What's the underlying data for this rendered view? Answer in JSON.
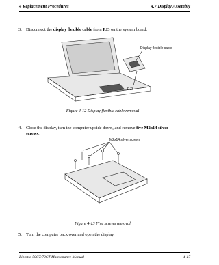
{
  "header": {
    "left": "4  Replacement Procedures",
    "right": "4.7  Display Assembly"
  },
  "steps": [
    {
      "number": "3.",
      "parts": [
        {
          "text": "Disconnect the "
        },
        {
          "text": "display flexible cable",
          "bold": true
        },
        {
          "text": " from "
        },
        {
          "text": "PJ3",
          "bold": true
        },
        {
          "text": " on the system board."
        }
      ]
    },
    {
      "number": "4.",
      "parts": [
        {
          "text": "Close the display, turn the computer upside down, and remove "
        },
        {
          "text": "five M2x14 silver screws",
          "bold": true
        },
        {
          "text": "."
        }
      ]
    },
    {
      "number": "5.",
      "parts": [
        {
          "text": "Turn the computer back over and open the display."
        }
      ]
    }
  ],
  "figures": [
    {
      "labels": [
        "Display flexible cable",
        "PJ3"
      ],
      "caption": "Figure 4-12  Display flexible cable removal"
    },
    {
      "labels": [
        "M2x14 silver screws"
      ],
      "caption": "Figure 4-13  Five screws removal"
    }
  ],
  "footer": {
    "left": "Libretto 50CT/70CT Maintenance Manual",
    "right": "4-17"
  }
}
